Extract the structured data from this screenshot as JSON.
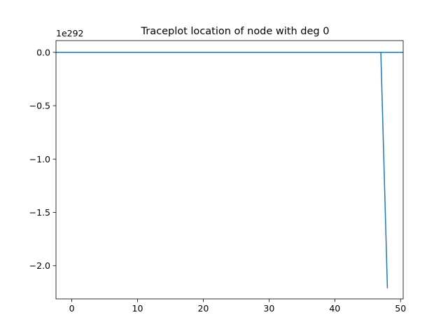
{
  "chart_data": {
    "type": "line",
    "title": "Traceplot location of node with deg 0",
    "xlabel": "",
    "ylabel": "",
    "y_offset_text": "1e292",
    "xlim": [
      -2.4,
      50.4
    ],
    "ylim": [
      -2.31,
      0.11
    ],
    "x_ticks": [
      0,
      10,
      20,
      30,
      40,
      50
    ],
    "x_tick_labels": [
      "0",
      "10",
      "20",
      "30",
      "40",
      "50"
    ],
    "y_ticks": [
      0.0,
      -0.5,
      -1.0,
      -1.5,
      -2.0
    ],
    "y_tick_labels": [
      "0.0",
      "−0.5",
      "−1.0",
      "−1.5",
      "−2.0"
    ],
    "grid": false,
    "line_color": "#1f77b4",
    "series": [
      {
        "x": [
          0,
          1,
          2,
          3,
          4,
          5,
          6,
          7,
          8,
          9,
          10,
          11,
          12,
          13,
          14,
          15,
          16,
          17,
          18,
          19,
          20,
          21,
          22,
          23,
          24,
          25,
          26,
          27,
          28,
          29,
          30,
          31,
          32,
          33,
          34,
          35,
          36,
          37,
          38,
          39,
          40,
          41,
          42,
          43,
          44,
          45,
          46,
          47,
          48
        ],
        "y": [
          0,
          0,
          0,
          0,
          0,
          0,
          0,
          0,
          0,
          0,
          0,
          0,
          0,
          0,
          0,
          0,
          0,
          0,
          0,
          0,
          0,
          0,
          0,
          0,
          0,
          0,
          0,
          0,
          0,
          0,
          0,
          0,
          0,
          0,
          0,
          0,
          0,
          0,
          0,
          0,
          0,
          0,
          0,
          0,
          0,
          0,
          0,
          0,
          -2.21
        ]
      }
    ],
    "reference_line_y": 0
  }
}
